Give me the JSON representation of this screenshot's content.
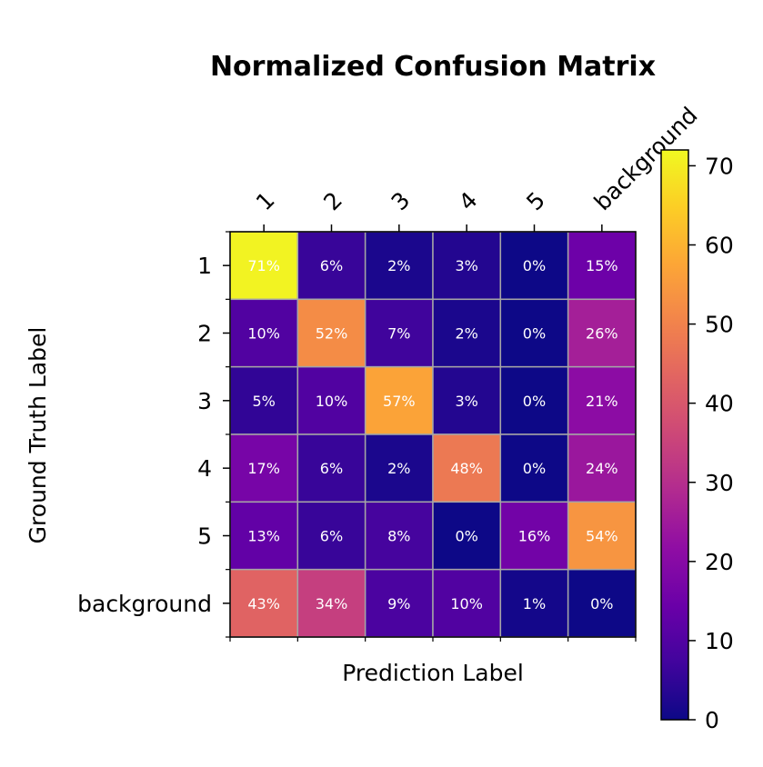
{
  "chart_data": {
    "type": "heatmap",
    "title": "Normalized Confusion Matrix",
    "xlabel": "Prediction Label",
    "ylabel": "Ground Truth Label",
    "x_categories": [
      "1",
      "2",
      "3",
      "4",
      "5",
      "background"
    ],
    "y_categories": [
      "1",
      "2",
      "3",
      "4",
      "5",
      "background"
    ],
    "values": [
      [
        71,
        6,
        2,
        3,
        0,
        15
      ],
      [
        10,
        52,
        7,
        2,
        0,
        26
      ],
      [
        5,
        10,
        57,
        3,
        0,
        21
      ],
      [
        17,
        6,
        2,
        48,
        0,
        24
      ],
      [
        13,
        6,
        8,
        0,
        16,
        54
      ],
      [
        43,
        34,
        9,
        10,
        1,
        0
      ]
    ],
    "value_suffix": "%",
    "colormap": "plasma",
    "colorbar": {
      "range": [
        0,
        72
      ],
      "ticks": [
        0,
        10,
        20,
        30,
        40,
        50,
        60,
        70
      ]
    },
    "grid": true,
    "x_ticks_position": "top",
    "cell_label_color": "#ffffff",
    "cell_border_color": "#a6a6a6"
  }
}
